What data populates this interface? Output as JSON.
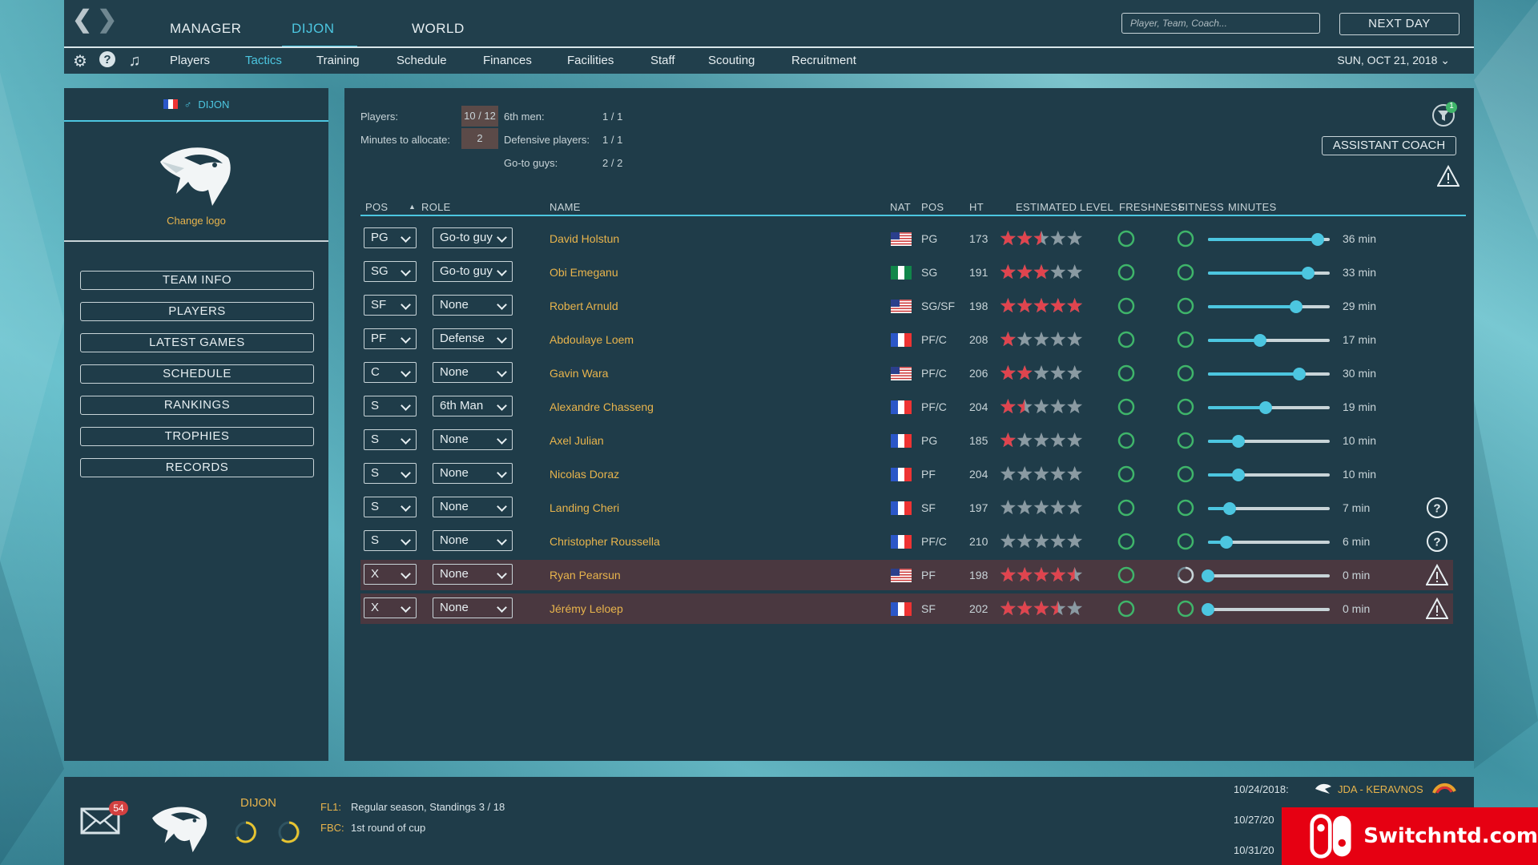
{
  "topbar": {
    "tabs": [
      {
        "label": "MANAGER",
        "active": false
      },
      {
        "label": "DIJON",
        "active": true
      },
      {
        "label": "WORLD",
        "active": false
      }
    ],
    "search_placeholder": "Player, Team, Coach...",
    "next_day_label": "NEXT DAY"
  },
  "subbar": {
    "tabs": [
      {
        "label": "Players",
        "active": false
      },
      {
        "label": "Tactics",
        "active": true
      },
      {
        "label": "Training",
        "active": false
      },
      {
        "label": "Schedule",
        "active": false
      },
      {
        "label": "Finances",
        "active": false
      },
      {
        "label": "Facilities",
        "active": false
      },
      {
        "label": "Staff",
        "active": false
      },
      {
        "label": "Scouting",
        "active": false
      },
      {
        "label": "Recruitment",
        "active": false
      }
    ],
    "date": "SUN, OCT 21, 2018"
  },
  "sidebar": {
    "team_name": "DIJON",
    "change_logo": "Change logo",
    "buttons": [
      "TEAM INFO",
      "PLAYERS",
      "LATEST GAMES",
      "SCHEDULE",
      "RANKINGS",
      "TROPHIES",
      "RECORDS"
    ]
  },
  "summary": {
    "players_label": "Players:",
    "players_value": "10 / 12",
    "minutes_label": "Minutes to allocate:",
    "minutes_value": "2",
    "sixth_label": "6th men:",
    "sixth_value": "1 / 1",
    "defensive_label": "Defensive players:",
    "defensive_value": "1 / 1",
    "goto_label": "Go-to guys:",
    "goto_value": "2 / 2",
    "filter_badge": "1",
    "assistant_coach_label": "ASSISTANT COACH"
  },
  "table": {
    "headers": {
      "pos": "POS",
      "role": "ROLE",
      "name": "NAME",
      "nat": "NAT",
      "pos2": "POS",
      "ht": "HT",
      "level": "ESTIMATED LEVEL",
      "freshness": "FRESHNESS",
      "fitness": "FITNESS",
      "minutes": "MINUTES"
    },
    "rows": [
      {
        "pos": "PG",
        "role": "Go-to guy",
        "name": "David Holstun",
        "nat": "us",
        "ppos": "PG",
        "ht": "173",
        "stars": 2.5,
        "fitness_full": true,
        "minutes_value": 36,
        "minutes": "36 min",
        "icon": "",
        "warn": false
      },
      {
        "pos": "SG",
        "role": "Go-to guy",
        "name": "Obi Emeganu",
        "nat": "ng",
        "ppos": "SG",
        "ht": "191",
        "stars": 3,
        "fitness_full": true,
        "minutes_value": 33,
        "minutes": "33 min",
        "icon": "",
        "warn": false
      },
      {
        "pos": "SF",
        "role": "None",
        "name": "Robert Arnuld",
        "nat": "us",
        "ppos": "SG/SF",
        "ht": "198",
        "stars": 5,
        "fitness_full": true,
        "minutes_value": 29,
        "minutes": "29 min",
        "icon": "",
        "warn": false
      },
      {
        "pos": "PF",
        "role": "Defense",
        "name": "Abdoulaye Loem",
        "nat": "fr",
        "ppos": "PF/C",
        "ht": "208",
        "stars": 1,
        "fitness_full": true,
        "minutes_value": 17,
        "minutes": "17 min",
        "icon": "",
        "warn": false
      },
      {
        "pos": "C",
        "role": "None",
        "name": "Gavin Wara",
        "nat": "us",
        "ppos": "PF/C",
        "ht": "206",
        "stars": 2,
        "fitness_full": true,
        "minutes_value": 30,
        "minutes": "30 min",
        "icon": "",
        "warn": false
      },
      {
        "pos": "S",
        "role": "6th Man",
        "name": "Alexandre Chasseng",
        "nat": "fr",
        "ppos": "PF/C",
        "ht": "204",
        "stars": 1.5,
        "fitness_full": true,
        "minutes_value": 19,
        "minutes": "19 min",
        "icon": "",
        "warn": false
      },
      {
        "pos": "S",
        "role": "None",
        "name": "Axel Julian",
        "nat": "fr",
        "ppos": "PG",
        "ht": "185",
        "stars": 1,
        "fitness_full": true,
        "minutes_value": 10,
        "minutes": "10 min",
        "icon": "",
        "warn": false
      },
      {
        "pos": "S",
        "role": "None",
        "name": "Nicolas Doraz",
        "nat": "fr",
        "ppos": "PF",
        "ht": "204",
        "stars": 0,
        "fitness_full": true,
        "minutes_value": 10,
        "minutes": "10 min",
        "icon": "",
        "warn": false
      },
      {
        "pos": "S",
        "role": "None",
        "name": "Landing Cheri",
        "nat": "fr",
        "ppos": "SF",
        "ht": "197",
        "stars": 0,
        "fitness_full": true,
        "minutes_value": 7,
        "minutes": "7 min",
        "icon": "help-icon",
        "warn": false
      },
      {
        "pos": "S",
        "role": "None",
        "name": "Christopher Roussella",
        "nat": "fr",
        "ppos": "PF/C",
        "ht": "210",
        "stars": 0,
        "fitness_full": true,
        "minutes_value": 6,
        "minutes": "6 min",
        "icon": "help-icon",
        "warn": false
      },
      {
        "pos": "X",
        "role": "None",
        "name": "Ryan Pearsun",
        "nat": "us",
        "ppos": "PF",
        "ht": "198",
        "stars": 4.5,
        "fitness_full": false,
        "minutes_value": 0,
        "minutes": "0 min",
        "icon": "warning-icon",
        "warn": true
      },
      {
        "pos": "X",
        "role": "None",
        "name": "Jérémy Leloep",
        "nat": "fr",
        "ppos": "SF",
        "ht": "202",
        "stars": 3.5,
        "fitness_full": true,
        "minutes_value": 0,
        "minutes": "0 min",
        "icon": "warning-icon",
        "warn": true
      }
    ]
  },
  "footer": {
    "mail_count": "54",
    "team_name": "DIJON",
    "competitions": [
      {
        "code": "FL1:",
        "text": "Regular season, Standings 3 / 18"
      },
      {
        "code": "FBC:",
        "text": "1st round of cup"
      }
    ],
    "fixtures": [
      {
        "date": "10/24/2018:",
        "match": "JDA - KERAVNOS"
      },
      {
        "date": "10/27/20",
        "match": ""
      },
      {
        "date": "10/31/20",
        "match": ""
      }
    ],
    "watermark": "Switchntd.com"
  },
  "colors": {
    "accent": "#4cc6e0",
    "gold": "#e8b44c",
    "panel": "#1f3c49",
    "star_red": "#e0444e",
    "ring_green": "#3fb56a",
    "ring_yellow": "#e8c430"
  },
  "max_minutes": 40
}
